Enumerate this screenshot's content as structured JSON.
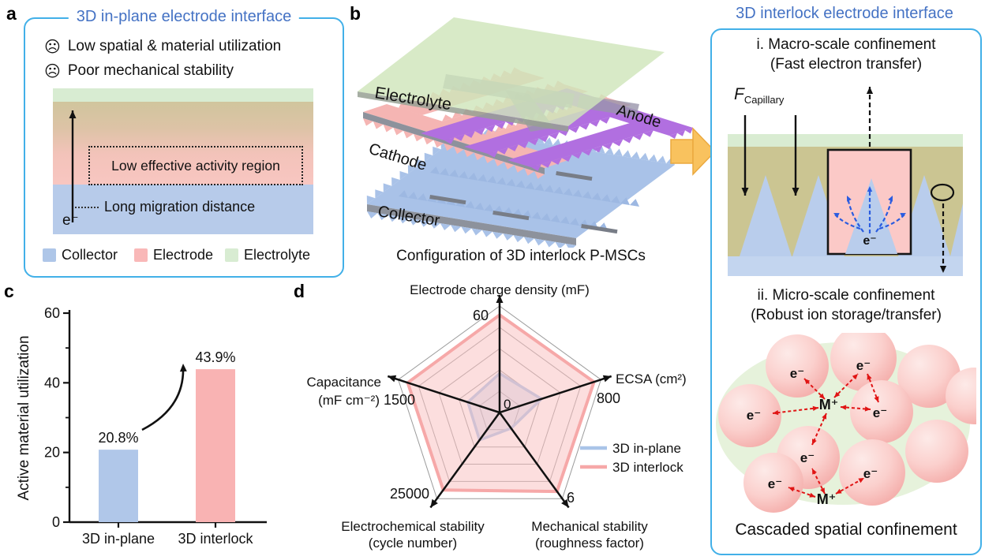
{
  "panel_a": {
    "label": "a",
    "title": "3D in-plane electrode interface",
    "issues": [
      {
        "icon": "sad-face",
        "icon_glyph": "☹",
        "text": "Low spatial & material utilization"
      },
      {
        "icon": "sad-face",
        "icon_glyph": "☹",
        "text": "Poor mechanical stability"
      }
    ],
    "diagram": {
      "activity_region": "Low effective activity region",
      "migration": "Long migration distance",
      "electron": "e⁻"
    },
    "legend": [
      {
        "label": "Collector",
        "color": "#aec6e8"
      },
      {
        "label": "Electrode",
        "color": "#f9b8b8"
      },
      {
        "label": "Electrolyte",
        "color": "#d8ecd2"
      }
    ]
  },
  "panel_b": {
    "label": "b",
    "layer_labels": {
      "electrolyte": "Electrolyte",
      "anode": "Anode",
      "cathode": "Cathode",
      "collector": "Collector"
    },
    "caption": "Configuration of 3D interlock P-MSCs"
  },
  "panel_right": {
    "title": "3D interlock electrode interface",
    "macro": {
      "heading": "i. Macro-scale confinement",
      "subheading": "(Fast electron transfer)",
      "force_symbol": "F",
      "force_subscript": "Capillary",
      "electron": "e⁻"
    },
    "micro": {
      "heading": "ii. Micro-scale confinement",
      "subheading": "(Robust ion storage/transfer)",
      "electron": "e⁻",
      "ion": "M⁺"
    },
    "caption": "Cascaded spatial confinement"
  },
  "panel_c": {
    "label": "c"
  },
  "panel_d": {
    "label": "d"
  },
  "chart_data": [
    {
      "type": "bar",
      "panel": "c",
      "title": "",
      "categories": [
        "3D in-plane",
        "3D interlock"
      ],
      "values": [
        20.8,
        43.9
      ],
      "value_labels": [
        "20.8%",
        "43.9%"
      ],
      "bar_colors": [
        "#b0c7e9",
        "#f9b3b3"
      ],
      "xlabel": "",
      "ylabel": "Active material utilization",
      "ylim": [
        0,
        60
      ],
      "yticks": [
        0,
        20,
        40,
        60
      ],
      "yticks_minor": [
        10,
        30,
        50
      ],
      "annotation": "increase-arrow"
    },
    {
      "type": "radar",
      "panel": "d",
      "axes": [
        {
          "line1": "Electrode charge density (mF)",
          "line2": "",
          "max_label": "60",
          "max": 60
        },
        {
          "line1": "ECSA (cm²)",
          "line2": "",
          "max_label": "800",
          "max": 800
        },
        {
          "line1": "Mechanical stability",
          "line2": "(roughness factor)",
          "max_label": "6",
          "max": 6
        },
        {
          "line1": "Electrochemical stability",
          "line2": "(cycle number)",
          "max_label": "25000",
          "max": 25000
        },
        {
          "line1": "Capacitance",
          "line2": "(mF cm⁻²)",
          "max_label": "1500",
          "max": 1500
        }
      ],
      "center_label": "0",
      "grid_levels": 5,
      "grid_on": true,
      "legend_position": "right",
      "series": [
        {
          "name": "3D in-plane",
          "color": "#a9c4e8",
          "fill": "rgba(176,198,230,0.38)",
          "values": [
            22,
            330,
            1.1,
            8000,
            470
          ]
        },
        {
          "name": "3D interlock",
          "color": "#f6a8a8",
          "fill": "rgba(249,189,189,0.5)",
          "values": [
            55,
            745,
            5.5,
            22500,
            1360
          ]
        }
      ]
    }
  ]
}
